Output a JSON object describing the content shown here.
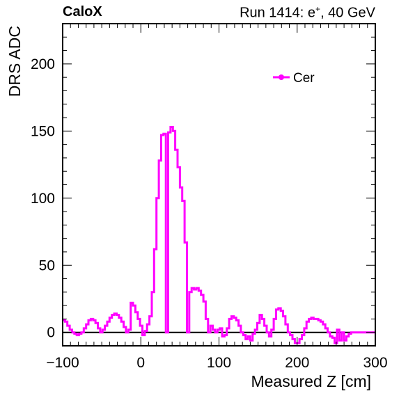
{
  "header": {
    "experiment": "CaloX",
    "run_prefix": "Run 1414: e",
    "run_particle_sup": "+",
    "run_suffix": ", 40 GeV"
  },
  "colors": {
    "series": "#ff00ff",
    "axis": "#000000",
    "zero_line": "#000000"
  },
  "chart_data": {
    "type": "line",
    "xlabel": "Measured Z [cm]",
    "ylabel": "DRS ADC",
    "xlim": [
      -100,
      300
    ],
    "ylim": [
      -10,
      230
    ],
    "xticks": [
      -100,
      0,
      100,
      200,
      300
    ],
    "xtick_labels": [
      "−100",
      "0",
      "100",
      "200",
      "300"
    ],
    "yticks": [
      0,
      50,
      100,
      150,
      200
    ],
    "ytick_labels": [
      "0",
      "50",
      "100",
      "150",
      "200"
    ],
    "legend": {
      "position": "top-right",
      "entries": [
        "Cer"
      ]
    },
    "series": [
      {
        "name": "Cer",
        "step": "hist",
        "x": [
          -100,
          -97,
          -94,
          -91,
          -88,
          -85,
          -82,
          -79,
          -76,
          -73,
          -70,
          -67,
          -64,
          -61,
          -58,
          -55,
          -52,
          -49,
          -46,
          -43,
          -40,
          -37,
          -34,
          -31,
          -28,
          -25,
          -22,
          -19,
          -16,
          -13,
          -10,
          -7,
          -4,
          -1,
          2,
          5,
          8,
          11,
          14,
          17,
          20,
          23,
          26,
          29,
          32,
          35,
          38,
          41,
          44,
          47,
          50,
          53,
          56,
          59,
          62,
          65,
          68,
          71,
          74,
          77,
          80,
          83,
          86,
          89,
          92,
          95,
          98,
          101,
          104,
          107,
          110,
          113,
          116,
          119,
          122,
          125,
          128,
          131,
          134,
          137,
          140,
          143,
          146,
          149,
          152,
          155,
          158,
          161,
          164,
          167,
          170,
          173,
          176,
          179,
          182,
          185,
          188,
          191,
          194,
          197,
          200,
          203,
          206,
          209,
          212,
          215,
          218,
          221,
          224,
          227,
          230,
          233,
          236,
          239,
          242,
          245,
          248,
          251,
          254,
          257,
          260,
          263,
          266,
          269,
          272,
          275,
          278,
          281,
          284,
          287,
          290,
          293,
          296,
          299,
          300
        ],
        "y": [
          9,
          8,
          5,
          2,
          0,
          -1,
          -2,
          -1,
          0,
          3,
          6,
          9,
          10,
          9,
          7,
          3,
          0,
          2,
          5,
          8,
          11,
          13,
          14,
          13,
          11,
          8,
          4,
          0,
          2,
          22,
          20,
          15,
          10,
          5,
          -2,
          1,
          6,
          12,
          30,
          62,
          100,
          128,
          147,
          148,
          0,
          149,
          153,
          150,
          136,
          123,
          108,
          98,
          67,
          0,
          30,
          33,
          32,
          33,
          31,
          28,
          23,
          10,
          0,
          5,
          2,
          0,
          2,
          3,
          -3,
          -2,
          3,
          10,
          12,
          11,
          9,
          5,
          0,
          -2,
          -5,
          -3,
          -6,
          -1,
          2,
          7,
          13,
          10,
          5,
          0,
          -3,
          2,
          10,
          17,
          18,
          16,
          12,
          6,
          0,
          -2,
          -5,
          -8,
          -8,
          -5,
          -2,
          3,
          8,
          10,
          11,
          10,
          10,
          9,
          8,
          6,
          3,
          0,
          -3,
          -4,
          -8,
          2,
          -6,
          0,
          -6,
          -3,
          -1,
          0,
          0,
          0,
          0,
          0,
          0,
          0,
          0,
          0,
          0,
          0,
          0
        ]
      }
    ]
  }
}
